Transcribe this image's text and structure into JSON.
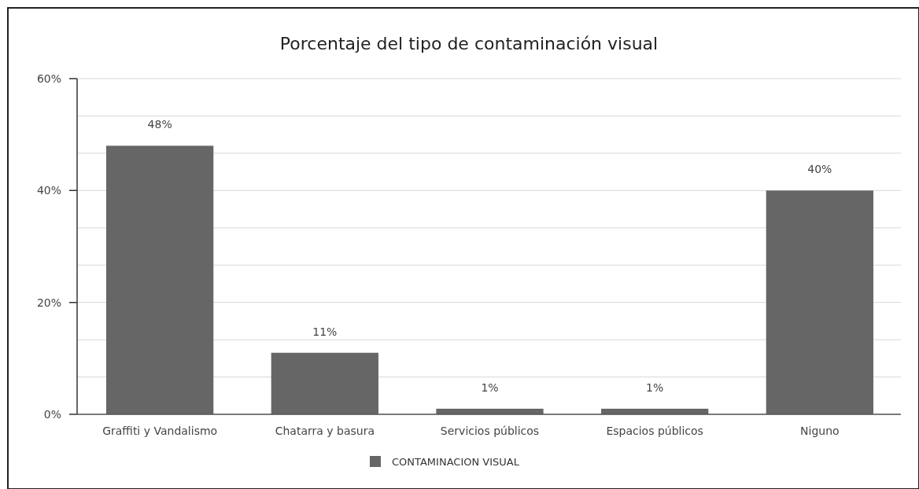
{
  "chart_data": {
    "type": "bar",
    "title": "Porcentaje del tipo de contaminación visual",
    "categories": [
      "Graffiti y Vandalismo",
      "Chatarra y basura",
      "Servicios públicos",
      "Espacios públicos",
      "Niguno"
    ],
    "series": [
      {
        "name": "CONTAMINACION VISUAL",
        "color": "#666666",
        "values": [
          48,
          11,
          1,
          1,
          40
        ]
      }
    ],
    "ylim": [
      0,
      60
    ],
    "yticks": [
      {
        "value": 0,
        "label": "0%"
      },
      {
        "value": 6.67,
        "label": null
      },
      {
        "value": 13.33,
        "label": null
      },
      {
        "value": 20,
        "label": "20%"
      },
      {
        "value": 26.67,
        "label": null
      },
      {
        "value": 33.33,
        "label": null
      },
      {
        "value": 40,
        "label": "40%"
      },
      {
        "value": 46.67,
        "label": null
      },
      {
        "value": 53.33,
        "label": null
      },
      {
        "value": 60,
        "label": "60%"
      }
    ],
    "value_labels": [
      "48%",
      "11%",
      "1%",
      "1%",
      "40%"
    ],
    "grid": "y",
    "legend": "bottom"
  }
}
